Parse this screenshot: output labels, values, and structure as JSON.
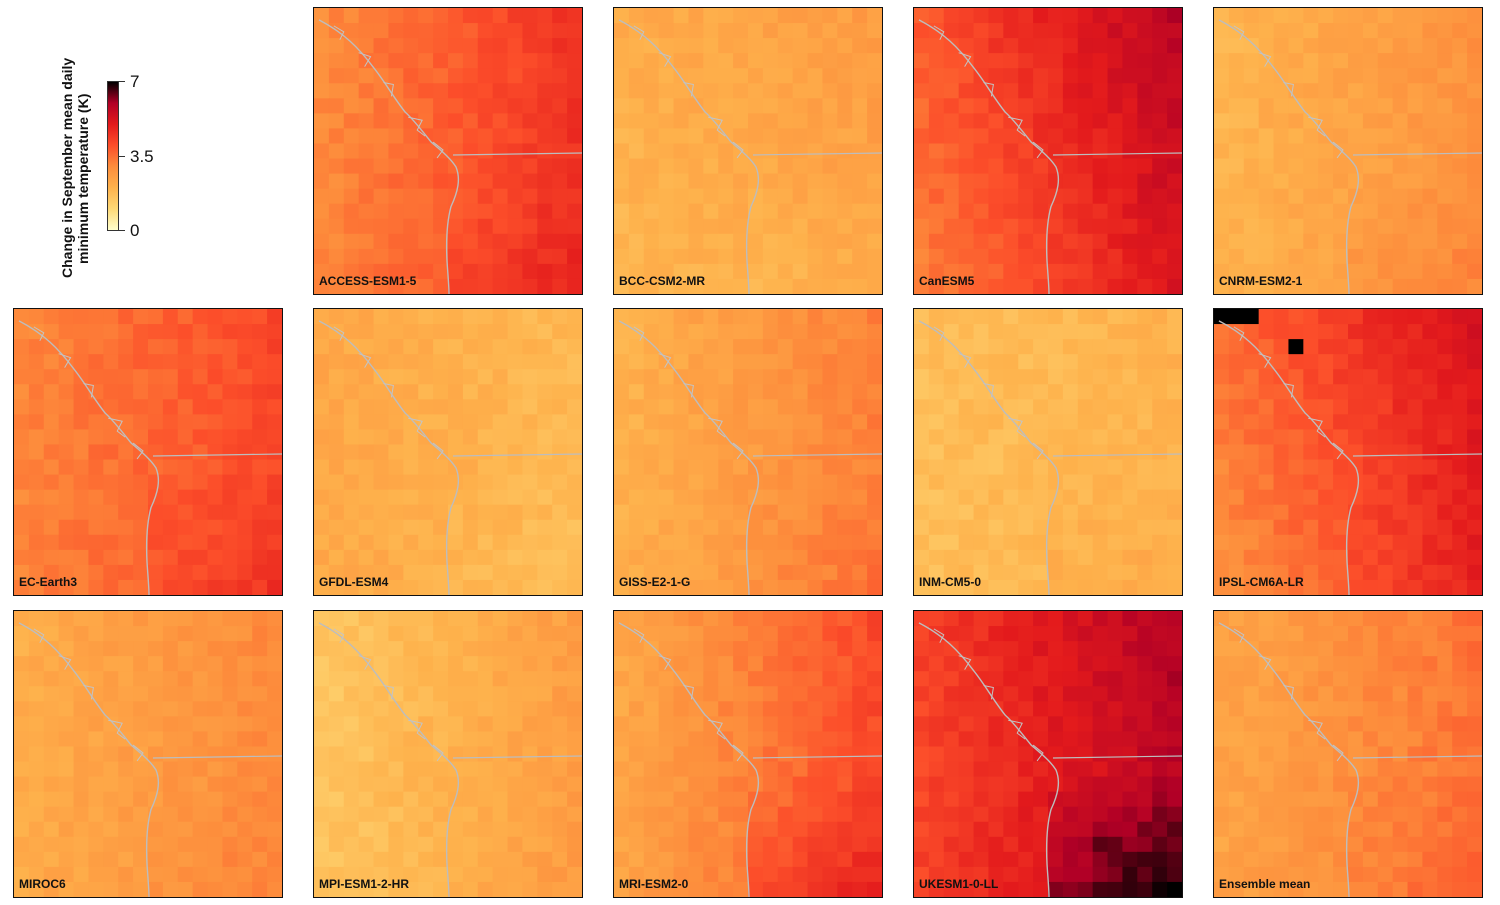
{
  "legend": {
    "title_line1": "Change in September mean daily",
    "title_line2": "minimum temperature (K)",
    "ticks": [
      "7",
      "3.5",
      "0"
    ],
    "colors": [
      "#ffffcc",
      "#fed976",
      "#feb24c",
      "#fd8d3c",
      "#fc4e2a",
      "#e31a1c",
      "#b10026",
      "#000000"
    ]
  },
  "panels": [
    {
      "label": "ACCESS-ESM1-5",
      "base": 3.6,
      "east": 1.0,
      "north": 0.0,
      "south": 0.4,
      "hotspot": 0.0
    },
    {
      "label": "BCC-CSM2-MR",
      "base": 2.2,
      "east": 0.3,
      "north": 0.2,
      "south": -0.3,
      "hotspot": 0.0
    },
    {
      "label": "CanESM5",
      "base": 4.3,
      "east": 1.3,
      "north": 0.6,
      "south": 0.0,
      "hotspot": 0.0
    },
    {
      "label": "CNRM-ESM2-1",
      "base": 2.3,
      "east": 0.6,
      "north": 0.0,
      "south": 0.4,
      "hotspot": 0.0
    },
    {
      "label": "EC-Earth3",
      "base": 3.5,
      "east": 0.7,
      "north": 0.0,
      "south": 0.5,
      "hotspot": 0.0
    },
    {
      "label": "GFDL-ESM4",
      "base": 2.1,
      "east": -0.3,
      "north": 0.0,
      "south": -0.2,
      "hotspot": 0.0
    },
    {
      "label": "GISS-E2-1-G",
      "base": 2.5,
      "east": 0.8,
      "north": 0.0,
      "south": 0.3,
      "hotspot": 0.0
    },
    {
      "label": "INM-CM5-0",
      "base": 1.8,
      "east": 0.2,
      "north": 0.0,
      "south": 0.3,
      "hotspot": 0.0
    },
    {
      "label": "IPSL-CM6A-LR",
      "base": 3.9,
      "east": 1.2,
      "north": 0.6,
      "south": 0.3,
      "hotspot": 7.0
    },
    {
      "label": "MIROC6",
      "base": 2.5,
      "east": 0.6,
      "north": 0.0,
      "south": 0.2,
      "hotspot": 0.0
    },
    {
      "label": "MPI-ESM1-2-HR",
      "base": 1.9,
      "east": 0.7,
      "north": 0.0,
      "south": 0.1,
      "hotspot": 0.0
    },
    {
      "label": "MRI-ESM2-0",
      "base": 3.0,
      "east": 1.2,
      "north": 0.0,
      "south": 1.0,
      "hotspot": 0.0
    },
    {
      "label": "UKESM1-0-LL",
      "base": 4.8,
      "east": 1.1,
      "north": 0.2,
      "south": 1.6,
      "hotspot": 6.8
    },
    {
      "label": "Ensemble mean",
      "base": 2.8,
      "east": 0.7,
      "north": 0.0,
      "south": 0.3,
      "hotspot": 0.0
    }
  ]
}
